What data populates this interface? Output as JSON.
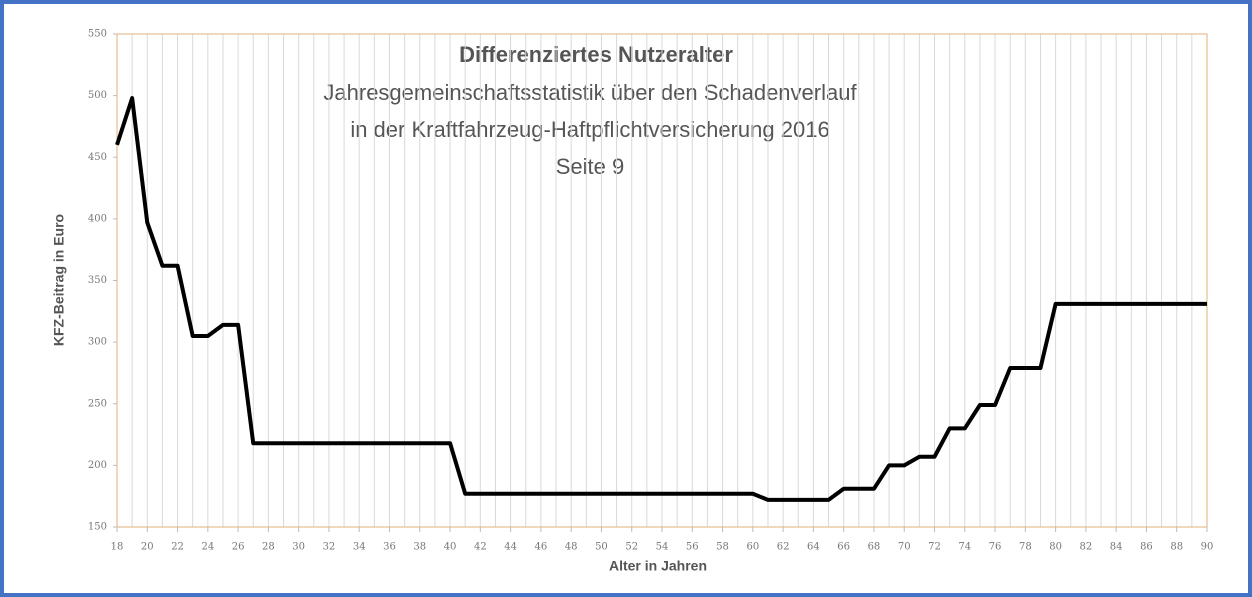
{
  "chart_data": {
    "type": "line",
    "title": "Differenziertes Nutzeralter",
    "subtitle": [
      "Jahresgemeinschaftsstatistik über den Schadenverlauf",
      "in der Kraftfahrzeug-Haftpflichtversicherung  2016",
      "Seite 9"
    ],
    "x_label": "Alter in Jahren",
    "y_label": "KFZ-Beitrag in Euro",
    "x": [
      18,
      19,
      20,
      21,
      22,
      23,
      24,
      25,
      26,
      27,
      28,
      29,
      30,
      31,
      32,
      33,
      34,
      35,
      36,
      37,
      38,
      39,
      40,
      41,
      42,
      43,
      44,
      45,
      46,
      47,
      48,
      49,
      50,
      51,
      52,
      53,
      54,
      55,
      56,
      57,
      58,
      59,
      60,
      61,
      62,
      63,
      64,
      65,
      66,
      67,
      68,
      69,
      70,
      71,
      72,
      73,
      74,
      75,
      76,
      77,
      78,
      79,
      80,
      81,
      82,
      83,
      84,
      85,
      86,
      87,
      88,
      89,
      90
    ],
    "series": [
      {
        "name": "KFZ-Beitrag",
        "color": "#000000",
        "values": [
          460,
          498,
          397,
          362,
          362,
          305,
          305,
          314,
          314,
          218,
          218,
          218,
          218,
          218,
          218,
          218,
          218,
          218,
          218,
          218,
          218,
          218,
          218,
          177,
          177,
          177,
          177,
          177,
          177,
          177,
          177,
          177,
          177,
          177,
          177,
          177,
          177,
          177,
          177,
          177,
          177,
          177,
          177,
          172,
          172,
          172,
          172,
          172,
          181,
          181,
          181,
          200,
          200,
          207,
          207,
          230,
          230,
          249,
          249,
          279,
          279,
          279,
          331,
          331,
          331,
          331,
          331,
          331,
          331,
          331,
          331,
          331,
          331
        ]
      }
    ],
    "xlim": [
      18,
      90
    ],
    "xticks": [
      18,
      20,
      22,
      24,
      26,
      28,
      30,
      32,
      34,
      36,
      38,
      40,
      42,
      44,
      46,
      48,
      50,
      52,
      54,
      56,
      58,
      60,
      62,
      64,
      66,
      68,
      70,
      72,
      74,
      76,
      78,
      80,
      82,
      84,
      86,
      88,
      90
    ],
    "ylim": [
      150,
      550
    ],
    "yticks": [
      150,
      200,
      250,
      300,
      350,
      400,
      450,
      500,
      550
    ],
    "grid": "x"
  }
}
